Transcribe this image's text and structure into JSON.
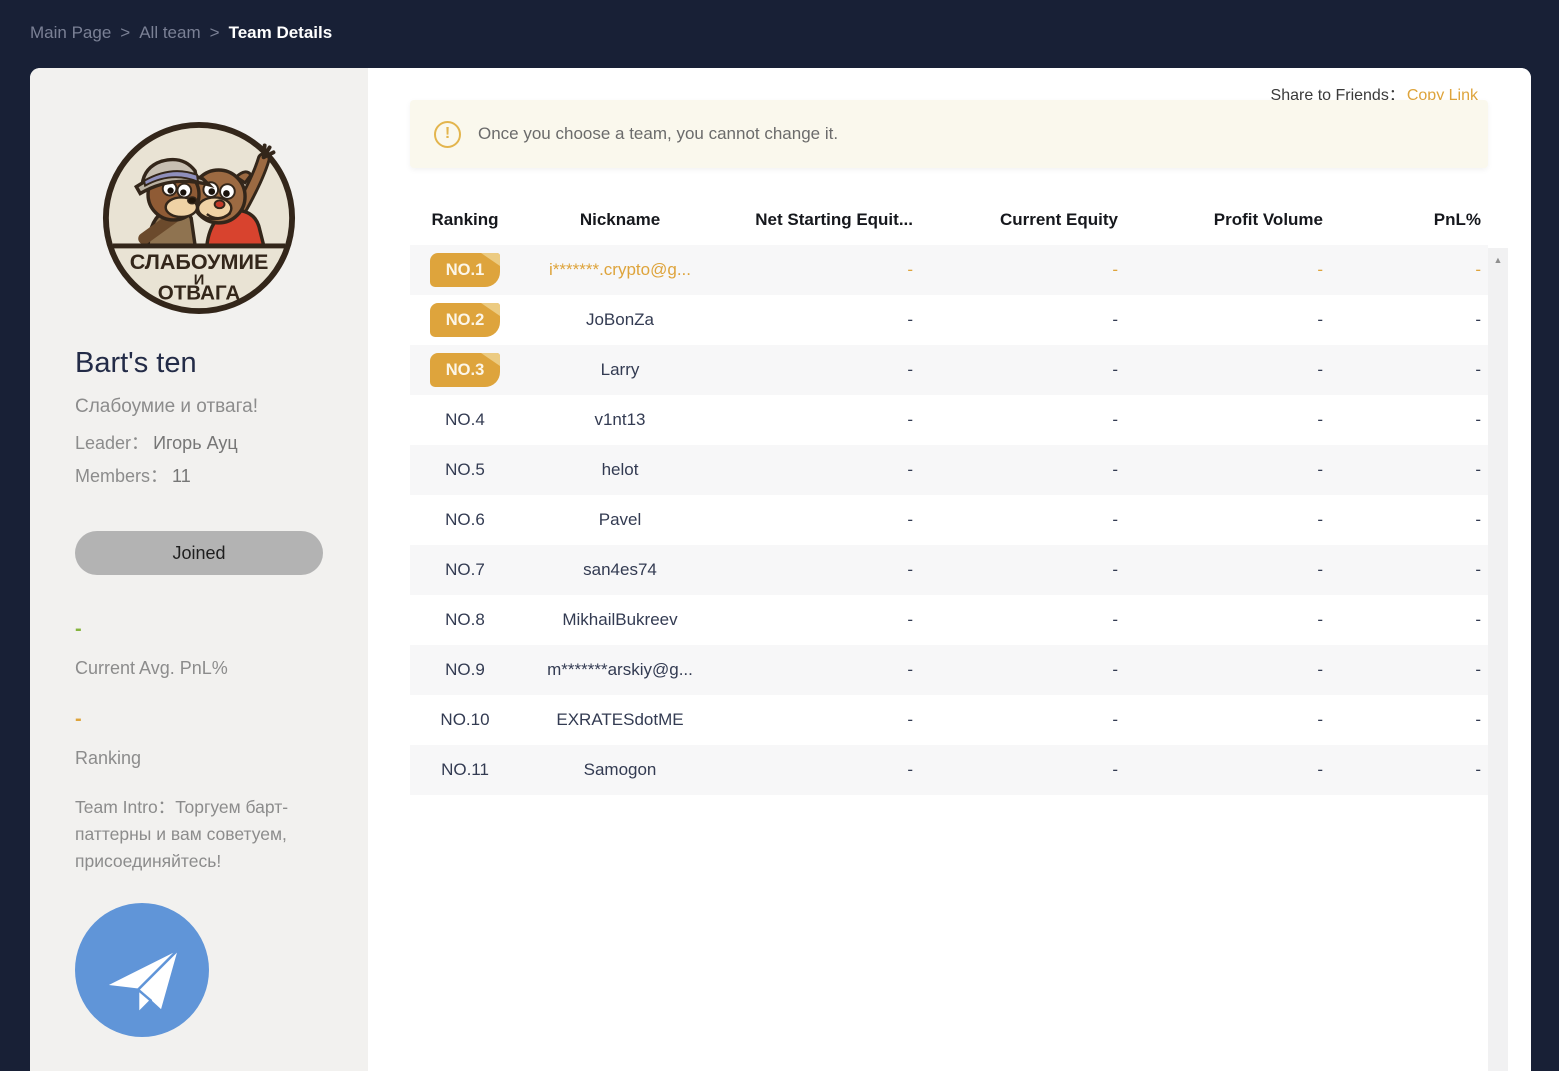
{
  "breadcrumb": {
    "items": [
      "Main Page",
      "All team"
    ],
    "current": "Team Details",
    "separator": ">"
  },
  "share": {
    "label": "Share to Friends：",
    "link": "Copy Link"
  },
  "notice": {
    "text": "Once you choose a team, you cannot change it."
  },
  "icons": {
    "warning_glyph": "!",
    "scrollbar_up_glyph": "▲",
    "telegram": "telegram-paper-plane",
    "logo": "team-badge-chip-and-dale"
  },
  "team": {
    "name": "Bart's ten",
    "slogan": "Слабоумие и отвага!",
    "leader_label": "Leader：",
    "leader": "Игорь Ауц",
    "members_label": "Members：",
    "members": "11",
    "joined_label": "Joined",
    "stats": [
      {
        "value": "-",
        "label": "Current Avg. PnL%"
      },
      {
        "value": "-",
        "label": "Ranking"
      }
    ],
    "intro_label": "Team Intro：",
    "intro": "Торгуем барт-паттерны и вам советуем, присоединяйтесь!",
    "logo_lines": [
      "СЛАБОУМИЕ",
      "И",
      "ОТВАГА"
    ]
  },
  "table": {
    "headers": [
      "Ranking",
      "Nickname",
      "Net Starting Equit...",
      "Current Equity",
      "Profit Volume",
      "PnL%"
    ],
    "rows": [
      {
        "rank": "NO.1",
        "badge": true,
        "highlight": true,
        "nickname": "i*******.crypto@g...",
        "net_starting": "-",
        "current_equity": "-",
        "profit_volume": "-",
        "pnl": "-"
      },
      {
        "rank": "NO.2",
        "badge": true,
        "highlight": false,
        "nickname": "JoBonZa",
        "net_starting": "-",
        "current_equity": "-",
        "profit_volume": "-",
        "pnl": "-"
      },
      {
        "rank": "NO.3",
        "badge": true,
        "highlight": false,
        "nickname": "Larry",
        "net_starting": "-",
        "current_equity": "-",
        "profit_volume": "-",
        "pnl": "-"
      },
      {
        "rank": "NO.4",
        "badge": false,
        "highlight": false,
        "nickname": "v1nt13",
        "net_starting": "-",
        "current_equity": "-",
        "profit_volume": "-",
        "pnl": "-"
      },
      {
        "rank": "NO.5",
        "badge": false,
        "highlight": false,
        "nickname": "helot",
        "net_starting": "-",
        "current_equity": "-",
        "profit_volume": "-",
        "pnl": "-"
      },
      {
        "rank": "NO.6",
        "badge": false,
        "highlight": false,
        "nickname": "Pavel",
        "net_starting": "-",
        "current_equity": "-",
        "profit_volume": "-",
        "pnl": "-"
      },
      {
        "rank": "NO.7",
        "badge": false,
        "highlight": false,
        "nickname": "san4es74",
        "net_starting": "-",
        "current_equity": "-",
        "profit_volume": "-",
        "pnl": "-"
      },
      {
        "rank": "NO.8",
        "badge": false,
        "highlight": false,
        "nickname": "MikhailBukreev",
        "net_starting": "-",
        "current_equity": "-",
        "profit_volume": "-",
        "pnl": "-"
      },
      {
        "rank": "NO.9",
        "badge": false,
        "highlight": false,
        "nickname": "m*******arskiy@g...",
        "net_starting": "-",
        "current_equity": "-",
        "profit_volume": "-",
        "pnl": "-"
      },
      {
        "rank": "NO.10",
        "badge": false,
        "highlight": false,
        "nickname": "EXRATESdotME",
        "net_starting": "-",
        "current_equity": "-",
        "profit_volume": "-",
        "pnl": "-"
      },
      {
        "rank": "NO.11",
        "badge": false,
        "highlight": false,
        "nickname": "Samogon",
        "net_starting": "-",
        "current_equity": "-",
        "profit_volume": "-",
        "pnl": "-"
      }
    ]
  },
  "colors": {
    "page_bg": "#182036",
    "panel_bg": "#FFFFFF",
    "sidebar_bg": "#F2F1EF",
    "gold": "#DEA43C",
    "gold_light": "#ECCB82",
    "green": "#85B43E",
    "stripe": "#F7F7F8",
    "notice_bg": "#FAF8ED",
    "text_dark": "#333B52",
    "text_gray": "#8C8C8C",
    "breadcrumb_gray": "#7A8095",
    "button_gray": "#B3B3B3",
    "telegram_blue": "#6095D8"
  }
}
